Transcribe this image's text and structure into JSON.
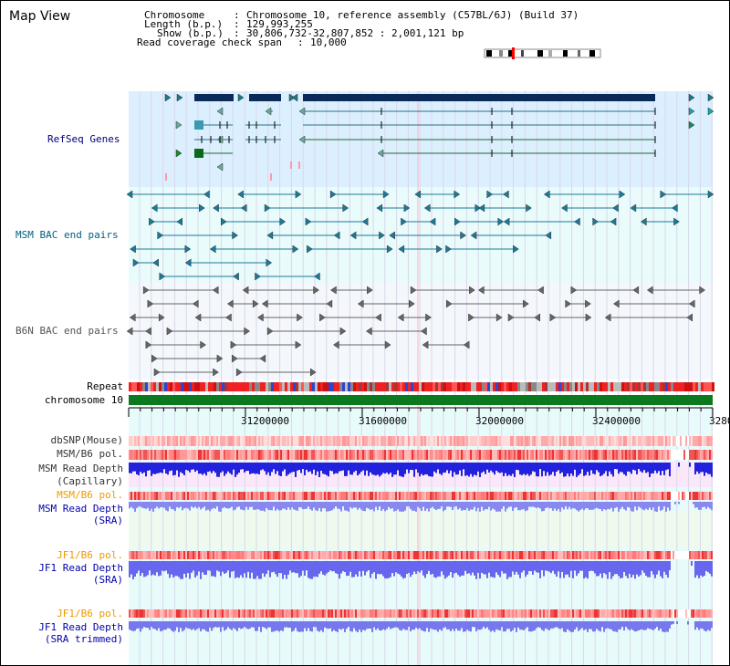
{
  "title": "Map View",
  "header": {
    "chromosome_label": "Chromosome",
    "chromosome_value": "Chromosome 10, reference assembly (C57BL/6J) (Build 37)",
    "length_label": "Length (b.p.)",
    "length_value": "129,993,255",
    "show_label": "Show (b.p.)",
    "show_value": "30,806,732-32,807,852 : 2,001,121 bp",
    "coverage_label": "Read coverage check span",
    "coverage_value": "10,000"
  },
  "tracks": {
    "refseq": "RefSeq Genes",
    "msm_bac": "MSM BAC end pairs",
    "b6n_bac": "B6N BAC end pairs",
    "repeat": "Repeat",
    "chromosome": "chromosome 10",
    "dbsnp": "dbSNP(Mouse)",
    "msm_b6_pol": "MSM/B6 pol.",
    "msm_read_depth_cap_1": "MSM Read Depth",
    "msm_read_depth_cap_2": "(Capillary)",
    "msm_b6_pol_2": "MSM/B6 pol.",
    "msm_read_depth_sra_1": "MSM Read Depth",
    "msm_read_depth_sra_2": "(SRA)",
    "jf1_b6_pol": "JF1/B6 pol.",
    "jf1_read_depth_sra_1": "JF1 Read Depth",
    "jf1_read_depth_sra_2": "(SRA)",
    "jf1_b6_pol_2": "JF1/B6 pol.",
    "jf1_read_depth_trim_1": "JF1 Read Depth",
    "jf1_read_depth_trim_2": "(SRA trimmed)"
  },
  "axis_ticks": [
    "31200000",
    "31600000",
    "32000000",
    "32400000",
    "3280"
  ],
  "colors": {
    "refseq_bg": "#dcefff",
    "bac_bg": "#eafbfb",
    "b6n_bg": "#f4f7fb",
    "gene_dark": "#0a2a5a",
    "gene_teal": "#1a7a8a",
    "chrom_green": "#0b7a1e",
    "depth_blue": "#2222dd",
    "sra_blue": "#8888ee",
    "pol_red": "#ee2222",
    "label_navy": "#000080",
    "label_orange": "#ee9900",
    "label_teal": "#006080"
  }
}
